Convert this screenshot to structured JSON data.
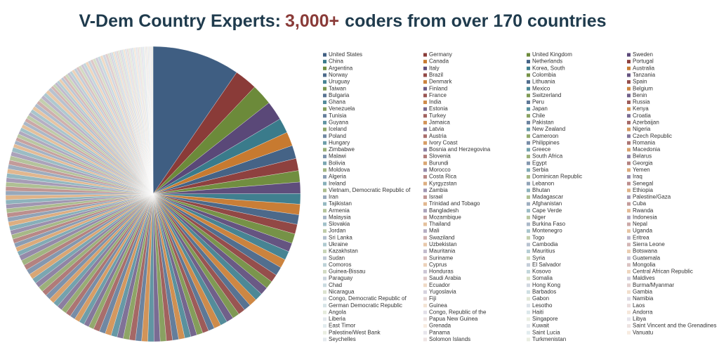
{
  "chart_data": {
    "type": "pie",
    "title": "V-Dem Country Experts:",
    "title_highlight": "3,000+",
    "title_rest": "coders from over 170 countries",
    "colors": [
      "#3f5e82",
      "#8a3b38",
      "#6c8a3a",
      "#5a4878",
      "#3a7b8b",
      "#c77a30"
    ],
    "categories": [
      "United States",
      "Germany",
      "United Kingdom",
      "Sweden",
      "China",
      "Canada",
      "Netherlands",
      "Portugal",
      "Argentina",
      "Italy",
      "Korea, South",
      "Australia",
      "Norway",
      "Brazil",
      "Colombia",
      "Tanzania",
      "Uruguay",
      "Denmark",
      "Lithuania",
      "Spain",
      "Taiwan",
      "Finland",
      "Mexico",
      "Belgium",
      "Bulgaria",
      "France",
      "Switzerland",
      "Benin",
      "Ghana",
      "India",
      "Peru",
      "Russia",
      "Venezuela",
      "Estonia",
      "Japan",
      "Kenya",
      "Tunisia",
      "Turkey",
      "Chile",
      "Croatia",
      "Guyana",
      "Jamaica",
      "Pakistan",
      "Azerbaijan",
      "Iceland",
      "Latvia",
      "New Zealand",
      "Nigeria",
      "Poland",
      "Austria",
      "Cameroon",
      "Czech Republic",
      "Hungary",
      "Ivory Coast",
      "Philippines",
      "Romania",
      "Zimbabwe",
      "Bosnia and Herzegovina",
      "Greece",
      "Macedonia",
      "Malawi",
      "Slovenia",
      "South Africa",
      "Belarus",
      "Bolivia",
      "Burundi",
      "Egypt",
      "Georgia",
      "Moldova",
      "Morocco",
      "Serbia",
      "Yemen",
      "Algeria",
      "Costa Rica",
      "Dominican Republic",
      "Iraq",
      "Ireland",
      "Kyrgyzstan",
      "Lebanon",
      "Senegal",
      "Vietnam, Democratic Republic of",
      "Zambia",
      "Bhutan",
      "Ethiopia",
      "Iran",
      "Israel",
      "Madagascar",
      "Palestine/Gaza",
      "Tajikistan",
      "Trinidad and Tobago",
      "Afghanistan",
      "Cuba",
      "Armenia",
      "Bangladesh",
      "Cape Verde",
      "Rwanda",
      "Malaysia",
      "Mozambique",
      "Niger",
      "Indonesia",
      "Slovakia",
      "Thailand",
      "Burkina Faso",
      "Nepal",
      "Jordan",
      "Mali",
      "Montenegro",
      "Uganda",
      "Sri Lanka",
      "Swaziland",
      "Togo",
      "Eritrea",
      "Ukraine",
      "Uzbekistan",
      "Cambodia",
      "Sierra Leone",
      "Kazakhstan",
      "Mauritania",
      "Mauritius",
      "Botswana",
      "Sudan",
      "Suriname",
      "Syria",
      "Guatemala",
      "Comoros",
      "Cyprus",
      "El Salvador",
      "Mongolia",
      "Guinea-Bissau",
      "Honduras",
      "Kosovo",
      "Central African Republic",
      "Paraguay",
      "Saudi Arabia",
      "Somalia",
      "Maldives",
      "Chad",
      "Ecuador",
      "Hong Kong",
      "Burma/Myanmar",
      "Nicaragua",
      "Yugoslavia",
      "Barbados",
      "Gambia",
      "Congo, Democratic Republic of",
      "Fiji",
      "Gabon",
      "Namibia",
      "German Democratic Republic",
      "Guinea",
      "Lesotho",
      "Laos",
      "Angola",
      "Congo, Republic of the",
      "Haiti",
      "Andorra",
      "Liberia",
      "Papua New Guinea",
      "Singapore",
      "Libya",
      "East Timor",
      "Grenada",
      "Kuwait",
      "Saint Vincent and the Grenadines",
      "Palestine/West Bank",
      "Panama",
      "Saint Lucia",
      "Vanuatu",
      "Seychelles",
      "Solomon Islands",
      "Turkmenistan"
    ],
    "values": [
      10.0,
      2.6,
      2.4,
      2.2,
      1.7,
      1.6,
      1.5,
      1.4,
      1.3,
      1.3,
      1.2,
      1.2,
      1.1,
      1.1,
      1.1,
      1.0,
      1.0,
      1.0,
      1.0,
      0.9,
      0.9,
      0.9,
      0.9,
      0.9,
      0.8,
      0.8,
      0.8,
      0.8,
      0.8,
      0.8,
      0.7,
      0.7,
      0.7,
      0.7,
      0.7,
      0.7,
      0.7,
      0.7,
      0.7,
      0.7,
      0.7,
      0.7,
      0.7,
      0.7,
      0.7,
      0.7,
      0.7,
      0.7,
      0.7,
      0.7,
      0.6,
      0.6,
      0.6,
      0.6,
      0.6,
      0.6,
      0.6,
      0.6,
      0.6,
      0.6,
      0.6,
      0.6,
      0.6,
      0.6,
      0.6,
      0.6,
      0.6,
      0.6,
      0.6,
      0.6,
      0.5,
      0.5,
      0.5,
      0.5,
      0.5,
      0.5,
      0.5,
      0.5,
      0.5,
      0.5,
      0.5,
      0.5,
      0.5,
      0.5,
      0.5,
      0.5,
      0.5,
      0.5,
      0.5,
      0.5,
      0.5,
      0.5,
      0.5,
      0.5,
      0.5,
      0.4,
      0.4,
      0.4,
      0.4,
      0.4,
      0.4,
      0.4,
      0.4,
      0.4,
      0.4,
      0.4,
      0.4,
      0.4,
      0.4,
      0.4,
      0.4,
      0.4,
      0.4,
      0.4,
      0.4,
      0.3,
      0.3,
      0.3,
      0.3,
      0.3,
      0.3,
      0.3,
      0.3,
      0.3,
      0.3,
      0.3,
      0.3,
      0.3,
      0.3,
      0.3,
      0.3,
      0.3,
      0.3,
      0.3,
      0.3,
      0.3,
      0.3,
      0.3,
      0.3,
      0.3,
      0.2,
      0.2,
      0.2,
      0.2,
      0.2,
      0.2,
      0.2,
      0.2,
      0.2,
      0.2,
      0.2,
      0.2,
      0.2,
      0.2,
      0.2,
      0.2,
      0.2,
      0.2,
      0.2,
      0.2,
      0.2,
      0.1,
      0.1,
      0.1,
      0.1,
      0.1,
      0.1,
      0.1,
      0.1,
      0.1,
      0.1
    ]
  }
}
